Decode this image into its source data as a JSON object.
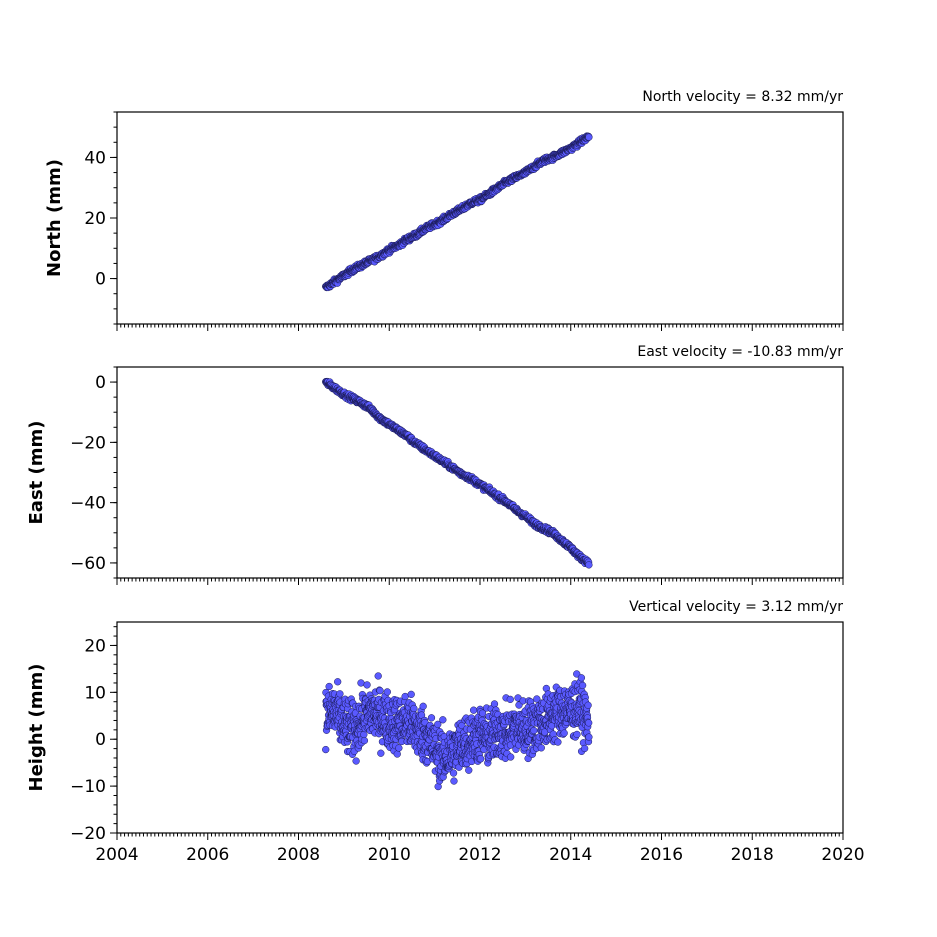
{
  "chart_data": [
    {
      "type": "scatter",
      "title": "North velocity = 8.32 mm/yr",
      "ylabel": "North (mm)",
      "xlim": [
        2004,
        2020
      ],
      "ylim": [
        -15,
        55
      ],
      "yticks": [
        0,
        20,
        40
      ],
      "ytick_labels": [
        "0",
        "20",
        "40"
      ],
      "marker_color": "#5a5aff",
      "marker_edge": "#1a1a55",
      "series": [
        {
          "x": [
            2008.6,
            2008.8,
            2009.0,
            2009.2,
            2009.4,
            2009.6,
            2009.8,
            2010.0,
            2010.2,
            2010.4,
            2010.6,
            2010.8,
            2011.0,
            2011.2,
            2011.4,
            2011.6,
            2011.8,
            2012.0,
            2012.2,
            2012.4,
            2012.6,
            2012.8,
            2013.0,
            2013.2,
            2013.4,
            2013.6,
            2013.8,
            2014.0,
            2014.2,
            2014.4
          ],
          "values": [
            -3,
            -1,
            1,
            3,
            4.5,
            6,
            7.5,
            9.5,
            11,
            13,
            14.5,
            16.5,
            18,
            19.5,
            21.5,
            23,
            25,
            26,
            28,
            30,
            32,
            33.5,
            35,
            37,
            39,
            40,
            41.5,
            43,
            45,
            47
          ]
        }
      ]
    },
    {
      "type": "scatter",
      "title": "East velocity = -10.83 mm/yr",
      "ylabel": "East (mm)",
      "xlim": [
        2004,
        2020
      ],
      "ylim": [
        -65,
        5
      ],
      "yticks": [
        0,
        -20,
        -40,
        -60
      ],
      "ytick_labels": [
        "0",
        "−20",
        "−40",
        "−60"
      ],
      "marker_color": "#5a5aff",
      "marker_edge": "#1a1a55",
      "series": [
        {
          "x": [
            2008.6,
            2008.8,
            2009.0,
            2009.2,
            2009.4,
            2009.6,
            2009.8,
            2010.0,
            2010.2,
            2010.4,
            2010.6,
            2010.8,
            2011.0,
            2011.2,
            2011.4,
            2011.6,
            2011.8,
            2012.0,
            2012.2,
            2012.4,
            2012.6,
            2012.8,
            2013.0,
            2013.2,
            2013.4,
            2013.6,
            2013.8,
            2014.0,
            2014.2,
            2014.4
          ],
          "values": [
            0,
            -2,
            -4,
            -5.5,
            -7,
            -9,
            -12,
            -14,
            -16,
            -18,
            -20.5,
            -22.5,
            -24.5,
            -26.5,
            -28.5,
            -30.5,
            -32,
            -34,
            -36,
            -38,
            -40,
            -42.5,
            -44.5,
            -47,
            -48.5,
            -50,
            -52.5,
            -55,
            -58,
            -60
          ]
        }
      ]
    },
    {
      "type": "scatter",
      "title": "Vertical velocity = 3.12 mm/yr",
      "ylabel": "Height (mm)",
      "xlim": [
        2004,
        2020
      ],
      "ylim": [
        -20,
        25
      ],
      "yticks": [
        -20,
        -10,
        0,
        10,
        20
      ],
      "ytick_labels": [
        "−20",
        "−10",
        "0",
        "10",
        "20"
      ],
      "xticks": [
        2004,
        2006,
        2008,
        2010,
        2012,
        2014,
        2016,
        2018,
        2020
      ],
      "xtick_labels": [
        "2004",
        "2006",
        "2008",
        "2010",
        "2012",
        "2014",
        "2016",
        "2018",
        "2020"
      ],
      "marker_color": "#5a5aff",
      "marker_edge": "#1a1a55",
      "series": [
        {
          "x": [
            2008.6,
            2008.8,
            2009.0,
            2009.2,
            2009.4,
            2009.6,
            2009.8,
            2010.0,
            2010.2,
            2010.4,
            2010.6,
            2010.8,
            2011.0,
            2011.2,
            2011.4,
            2011.6,
            2011.8,
            2012.0,
            2012.2,
            2012.4,
            2012.6,
            2012.8,
            2013.0,
            2013.2,
            2013.4,
            2013.6,
            2013.8,
            2014.0,
            2014.2,
            2014.4
          ],
          "values": [
            5,
            6,
            3,
            2,
            4,
            6,
            5,
            4,
            3,
            4,
            2,
            1,
            -2,
            -4,
            -3,
            -1,
            0,
            1,
            0,
            2,
            1,
            3,
            2,
            3,
            4,
            5,
            6,
            6,
            7,
            3
          ]
        }
      ]
    }
  ]
}
